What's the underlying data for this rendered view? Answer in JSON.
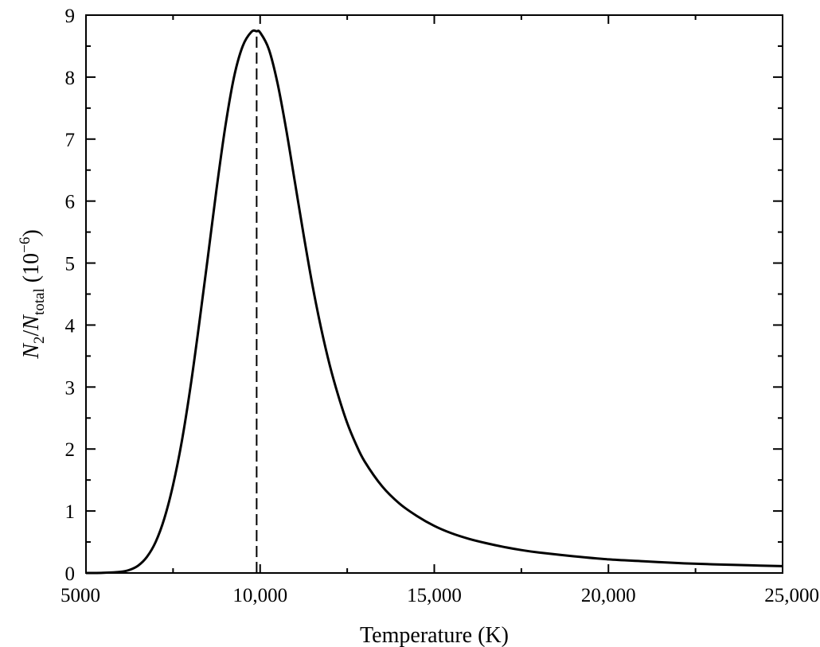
{
  "chart_data": {
    "type": "line",
    "title": "",
    "xlabel": "Temperature (K)",
    "ylabel": {
      "symbol_numerator": "N",
      "sub_numerator": "2",
      "separator": "/",
      "symbol_denominator": "N",
      "sub_denominator": "total",
      "units_open": " (10",
      "units_exponent": "−6",
      "units_close": ")"
    },
    "xlim": [
      5000,
      25000
    ],
    "ylim": [
      0,
      9
    ],
    "x_ticks": [
      5000,
      10000,
      15000,
      20000,
      25000
    ],
    "x_tick_labels": [
      "5000",
      "10,000",
      "15,000",
      "20,000",
      "25,000"
    ],
    "y_ticks": [
      0,
      1,
      2,
      3,
      4,
      5,
      6,
      7,
      8,
      9
    ],
    "y_tick_labels": [
      "0",
      "1",
      "2",
      "3",
      "4",
      "5",
      "6",
      "7",
      "8",
      "9"
    ],
    "grid": false,
    "series": [
      {
        "style": "solid",
        "color": "#000000",
        "x": [
          5000,
          5500,
          6000,
          6250,
          6500,
          6750,
          7000,
          7250,
          7500,
          7750,
          8000,
          8250,
          8500,
          8750,
          9000,
          9250,
          9500,
          9750,
          9900,
          10000,
          10250,
          10500,
          10750,
          11000,
          11250,
          11500,
          11750,
          12000,
          12250,
          12500,
          12750,
          13000,
          13500,
          14000,
          14500,
          15000,
          15500,
          16000,
          16500,
          17000,
          17500,
          18000,
          19000,
          20000,
          21000,
          22000,
          23000,
          24000,
          25000
        ],
        "y": [
          0.0,
          0.003,
          0.02,
          0.05,
          0.12,
          0.26,
          0.5,
          0.88,
          1.42,
          2.12,
          3.0,
          4.02,
          5.1,
          6.2,
          7.2,
          8.0,
          8.5,
          8.73,
          8.74,
          8.72,
          8.45,
          7.9,
          7.15,
          6.3,
          5.45,
          4.65,
          3.95,
          3.35,
          2.85,
          2.42,
          2.08,
          1.8,
          1.4,
          1.12,
          0.92,
          0.76,
          0.64,
          0.55,
          0.48,
          0.42,
          0.37,
          0.33,
          0.27,
          0.22,
          0.19,
          0.16,
          0.14,
          0.125,
          0.11
        ]
      }
    ],
    "reference_lines": [
      {
        "orientation": "vertical",
        "style": "dashed",
        "color": "#000000",
        "x": 9900,
        "y_from": 0,
        "y_to": 8.74
      }
    ]
  }
}
